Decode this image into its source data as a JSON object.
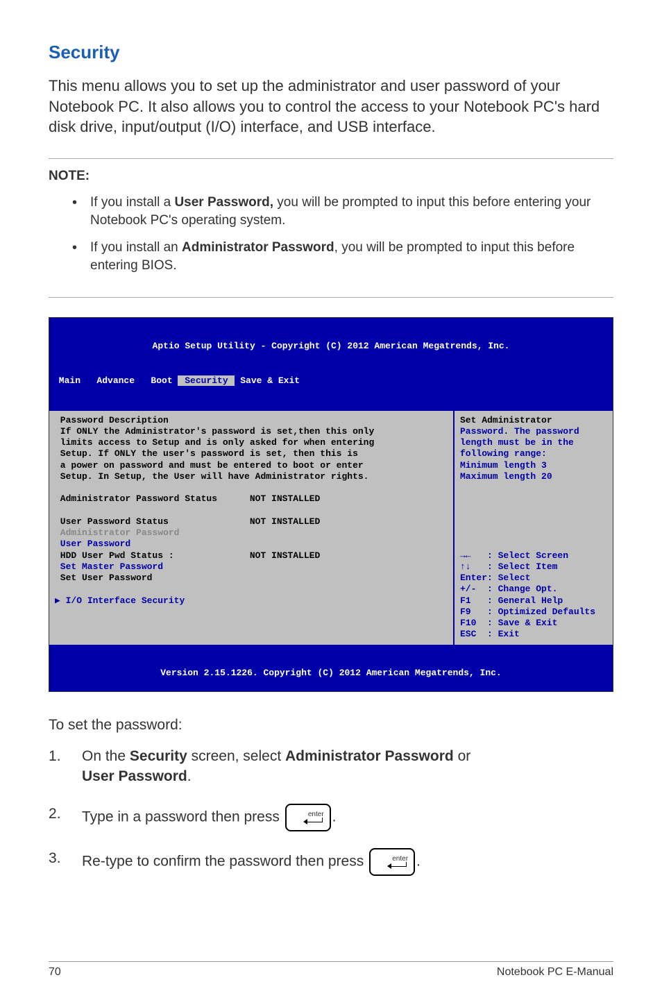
{
  "section": {
    "title": "Security"
  },
  "intro": "This menu allows you to set up the administrator and user password of your Notebook PC. It also allows you to control the access to your Notebook PC's hard disk drive, input/output (I/O) interface, and USB interface.",
  "note": {
    "head": "NOTE:",
    "item1_a": "If you install a ",
    "item1_b": "User Password,",
    "item1_c": " you will be prompted to input this before entering your Notebook PC's operating system.",
    "item2_a": "If you install an ",
    "item2_b": "Administrator Password",
    "item2_c": ", you will be prompted to input this before entering BIOS."
  },
  "bios": {
    "title": "Aptio Setup Utility - Copyright (C) 2012 American Megatrends, Inc.",
    "menubar_left": " Main   Advance   Boot ",
    "menubar_active": " Security ",
    "menubar_right": " Save & Exit ",
    "left_line1": " Password Description",
    "left_line2": " If ONLY the Administrator's password is set,then this only",
    "left_line3": " limits access to Setup and is only asked for when entering",
    "left_line4": " Setup. If ONLY the user's password is set, then this is",
    "left_line5": " a power on password and must be entered to boot or enter",
    "left_line6": " Setup. In Setup, the User will have Administrator rights.",
    "left_line7": " Administrator Password Status      NOT INSTALLED",
    "left_line8": " User Password Status               NOT INSTALLED",
    "left_line9": " Administrator Password",
    "left_line10": " User Password",
    "left_line11": " HDD User Pwd Status :              NOT INSTALLED",
    "left_line12": " Set Master Password",
    "left_line13": " Set User Password",
    "left_line14": "▶ I/O Interface Security",
    "right_line1": "Set Administrator",
    "right_line2": "Password. The password",
    "right_line3": "length must be in the",
    "right_line4": "following range:",
    "right_line5": "Minimum length 3",
    "right_line6": "Maximum length 20",
    "help1": "→←   : Select Screen",
    "help2": "↑↓   : Select Item",
    "help3": "Enter: Select",
    "help4": "+/-  : Change Opt.",
    "help5": "F1   : General Help",
    "help6": "F9   : Optimized Defaults",
    "help7": "F10  : Save & Exit",
    "help8": "ESC  : Exit",
    "footer": "Version 2.15.1226. Copyright (C) 2012 American Megatrends, Inc."
  },
  "steps": {
    "intro": "To set the password:",
    "s1_a": "On the ",
    "s1_b": "Security",
    "s1_c": " screen, select ",
    "s1_d": "Administrator Password",
    "s1_e": " or ",
    "s1_f": "User Password",
    "s1_g": ".",
    "s2_a": "Type in a password then press ",
    "s2_b": ".",
    "s3_a": "Re-type to confirm the password then press ",
    "s3_b": "."
  },
  "footer": {
    "page_no": "70",
    "doc_title": "Notebook PC E-Manual"
  },
  "colors": {
    "heading": "#1b5fb3",
    "bios_bg": "#0000a8",
    "bios_panel": "#c0c0c0"
  }
}
